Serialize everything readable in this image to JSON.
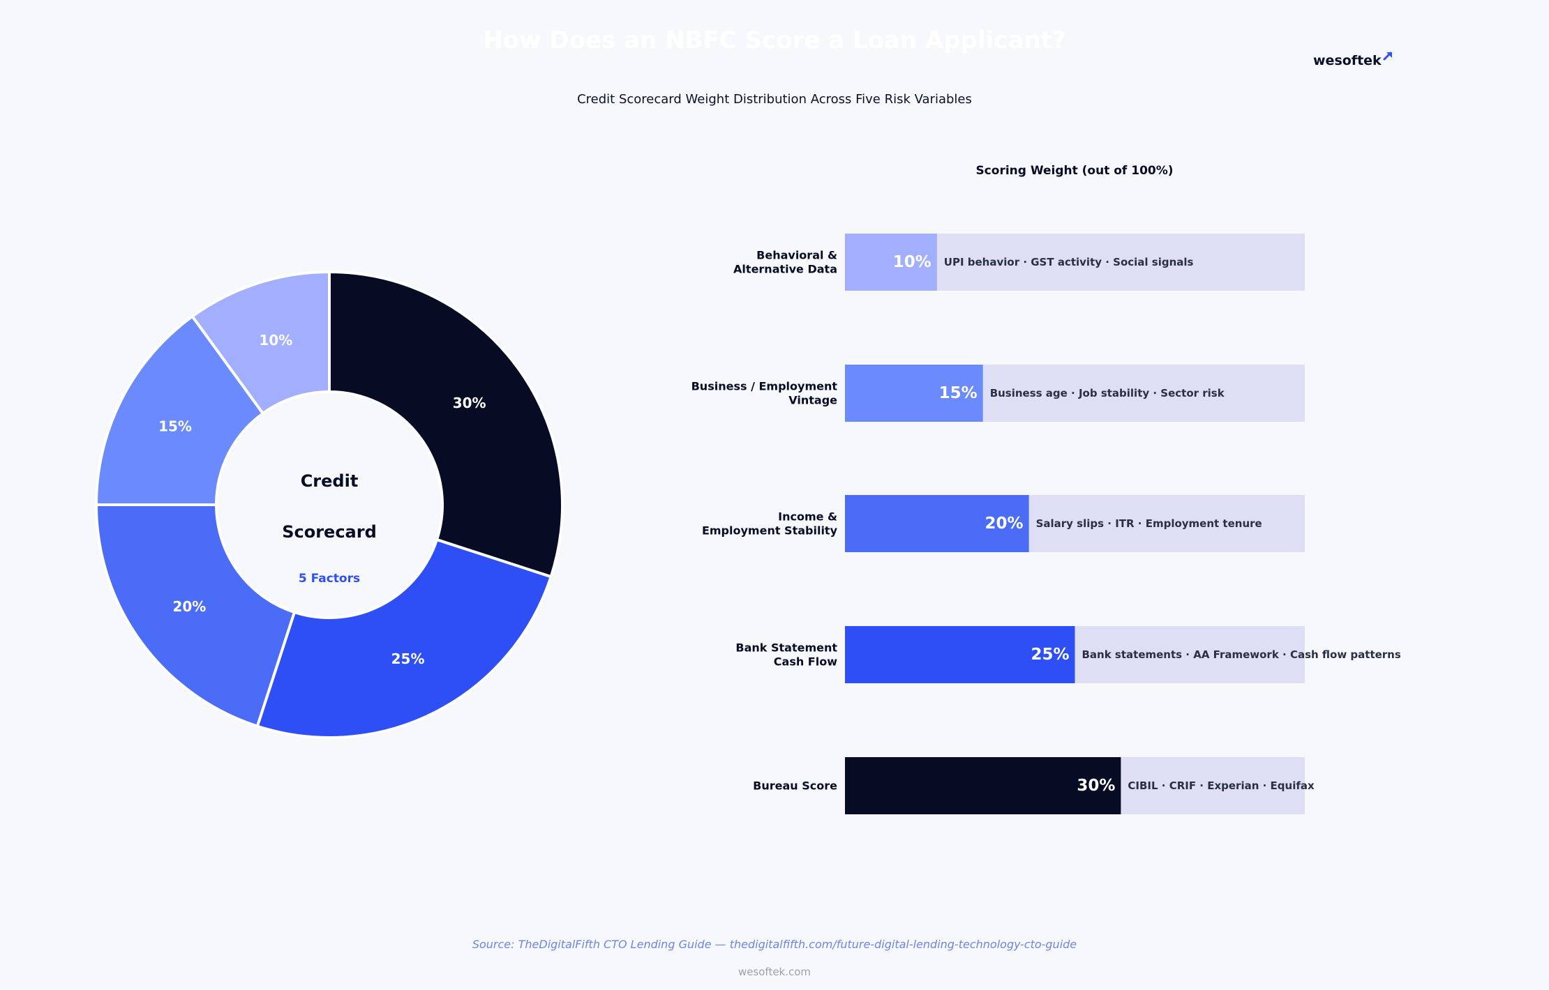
{
  "header": {
    "title": "How Does an NBFC Score a Loan Applicant?",
    "subtitle": "Credit Scorecard Weight Distribution Across Five Risk Variables",
    "logo_text": "wesoftek"
  },
  "colors": {
    "background": "#f7f8fc",
    "bar_track": "#dedff4",
    "dark": "#070c24",
    "accent": "#2d4ff5"
  },
  "chart_data": [
    {
      "type": "pie",
      "variant": "donut",
      "center_label_line1": "Credit",
      "center_label_line2": "Scorecard",
      "center_sublabel": "5 Factors",
      "slices": [
        {
          "value": 30,
          "label": "30%",
          "color": "#070c24"
        },
        {
          "value": 25,
          "label": "25%",
          "color": "#2d4ff5"
        },
        {
          "value": 20,
          "label": "20%",
          "color": "#4a6cf7"
        },
        {
          "value": 15,
          "label": "15%",
          "color": "#6a8afe"
        },
        {
          "value": 10,
          "label": "10%",
          "color": "#a2afff"
        }
      ]
    },
    {
      "type": "bar",
      "orientation": "horizontal",
      "title": "Scoring Weight  (out of 100%)",
      "xlim": [
        0,
        100
      ],
      "categories": [
        [
          "Behavioral &",
          "Alternative Data"
        ],
        [
          "Business / Employment",
          "Vintage"
        ],
        [
          "Income &",
          "Employment Stability"
        ],
        [
          "Bank Statement",
          "Cash Flow"
        ],
        [
          "Bureau Score"
        ]
      ],
      "values": [
        10,
        15,
        20,
        25,
        30
      ],
      "value_labels": [
        "10%",
        "15%",
        "20%",
        "25%",
        "30%"
      ],
      "colors": [
        "#a2afff",
        "#6a8afe",
        "#4a6cf7",
        "#2d4ff5",
        "#070c24"
      ],
      "descriptions": [
        "UPI behavior  ·  GST activity  ·  Social signals",
        "Business age  ·  Job stability  ·  Sector risk",
        "Salary slips  ·  ITR  ·  Employment tenure",
        "Bank statements  ·  AA Framework  ·  Cash flow patterns",
        "CIBIL  ·  CRIF  ·  Experian  ·  Equifax"
      ]
    }
  ],
  "footer": {
    "source": "Source: TheDigitalFifth CTO Lending Guide  —  thedigitalfifth.com/future-digital-lending-technology-cto-guide",
    "site": "wesoftek.com"
  }
}
